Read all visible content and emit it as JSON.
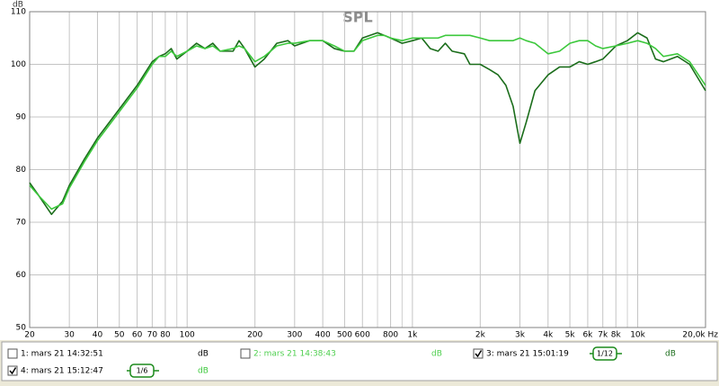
{
  "chart_data": {
    "type": "line",
    "title": "SPL",
    "y_label": "dB",
    "log_x": true,
    "grid": true,
    "xlim": [
      20,
      20000
    ],
    "ylim": [
      50,
      110
    ],
    "xticks": [
      20,
      30,
      40,
      50,
      60,
      70,
      80,
      100,
      200,
      300,
      400,
      500,
      600,
      800,
      {
        "value": 1000,
        "label": "1k"
      },
      {
        "value": 2000,
        "label": "2k"
      },
      {
        "value": 3000,
        "label": "3k"
      },
      {
        "value": 4000,
        "label": "4k"
      },
      {
        "value": 5000,
        "label": "5k"
      },
      {
        "value": 6000,
        "label": "6k"
      },
      {
        "value": 7000,
        "label": "7k"
      },
      {
        "value": 8000,
        "label": "8k"
      },
      {
        "value": 10000,
        "label": "10k"
      },
      {
        "value": 20000,
        "label": "20,0k Hz"
      }
    ],
    "xminor": [
      90,
      700,
      900,
      9000
    ],
    "yticks": [
      50,
      60,
      70,
      80,
      90,
      100,
      110
    ],
    "x": [
      20,
      22,
      25,
      28,
      30,
      35,
      40,
      50,
      60,
      70,
      75,
      80,
      85,
      90,
      100,
      110,
      120,
      130,
      140,
      160,
      170,
      180,
      200,
      220,
      250,
      280,
      300,
      350,
      400,
      450,
      500,
      550,
      600,
      700,
      750,
      800,
      900,
      1000,
      1100,
      1200,
      1300,
      1400,
      1500,
      1700,
      1800,
      2000,
      2200,
      2400,
      2600,
      2800,
      3000,
      3200,
      3500,
      4000,
      4500,
      5000,
      5500,
      6000,
      6500,
      7000,
      8000,
      9000,
      10000,
      11000,
      12000,
      13000,
      15000,
      17000,
      20000
    ],
    "series": [
      {
        "name": "3: mars 21 15:01:19",
        "color": "#1b6d1b",
        "checked": true,
        "smoothing": "1/12",
        "unit": "dB",
        "values": [
          77.5,
          75,
          71.5,
          74,
          77,
          82,
          86,
          91.5,
          96,
          100.5,
          101.5,
          102,
          103,
          101,
          102.5,
          104,
          103,
          104,
          102.5,
          102.5,
          104.5,
          103,
          99.5,
          101,
          104,
          104.5,
          103.5,
          104.5,
          104.5,
          103,
          102.5,
          102.5,
          105,
          106,
          105.5,
          105,
          104,
          104.5,
          105,
          103,
          102.5,
          104,
          102.5,
          102,
          100,
          100,
          99,
          98,
          96,
          92,
          85,
          89,
          95,
          98,
          99.5,
          99.5,
          100.5,
          100,
          100.5,
          101,
          103.5,
          104.5,
          106,
          105,
          101,
          100.5,
          101.5,
          100,
          95
        ]
      },
      {
        "name": "4: mars 21 15:12:47",
        "color": "#3cc83c",
        "checked": true,
        "smoothing": "1/6",
        "unit": "dB",
        "values": [
          77,
          75,
          72.5,
          73.5,
          76.5,
          81.5,
          85.5,
          91,
          95.5,
          100,
          101.5,
          101.5,
          102.5,
          101.5,
          102.5,
          103.5,
          103,
          103.5,
          102.5,
          103,
          103.5,
          103,
          100.5,
          101.5,
          103.5,
          104,
          104,
          104.5,
          104.5,
          103.5,
          102.5,
          102.5,
          104.5,
          105.5,
          105.5,
          105,
          104.5,
          105,
          105,
          105,
          105,
          105.5,
          105.5,
          105.5,
          105.5,
          105,
          104.5,
          104.5,
          104.5,
          104.5,
          105,
          104.5,
          104,
          102,
          102.5,
          104,
          104.5,
          104.5,
          103.5,
          103,
          103.5,
          104,
          104.5,
          104,
          103,
          101.5,
          102,
          100.5,
          96
        ]
      }
    ]
  },
  "measurements": [
    {
      "label": "1: mars 21 14:32:51",
      "checked": false,
      "unit": "dB",
      "color": "#000000"
    },
    {
      "label": "2: mars 21 14:38:43",
      "checked": false,
      "unit": "dB",
      "color": "#4fcf4f"
    }
  ]
}
